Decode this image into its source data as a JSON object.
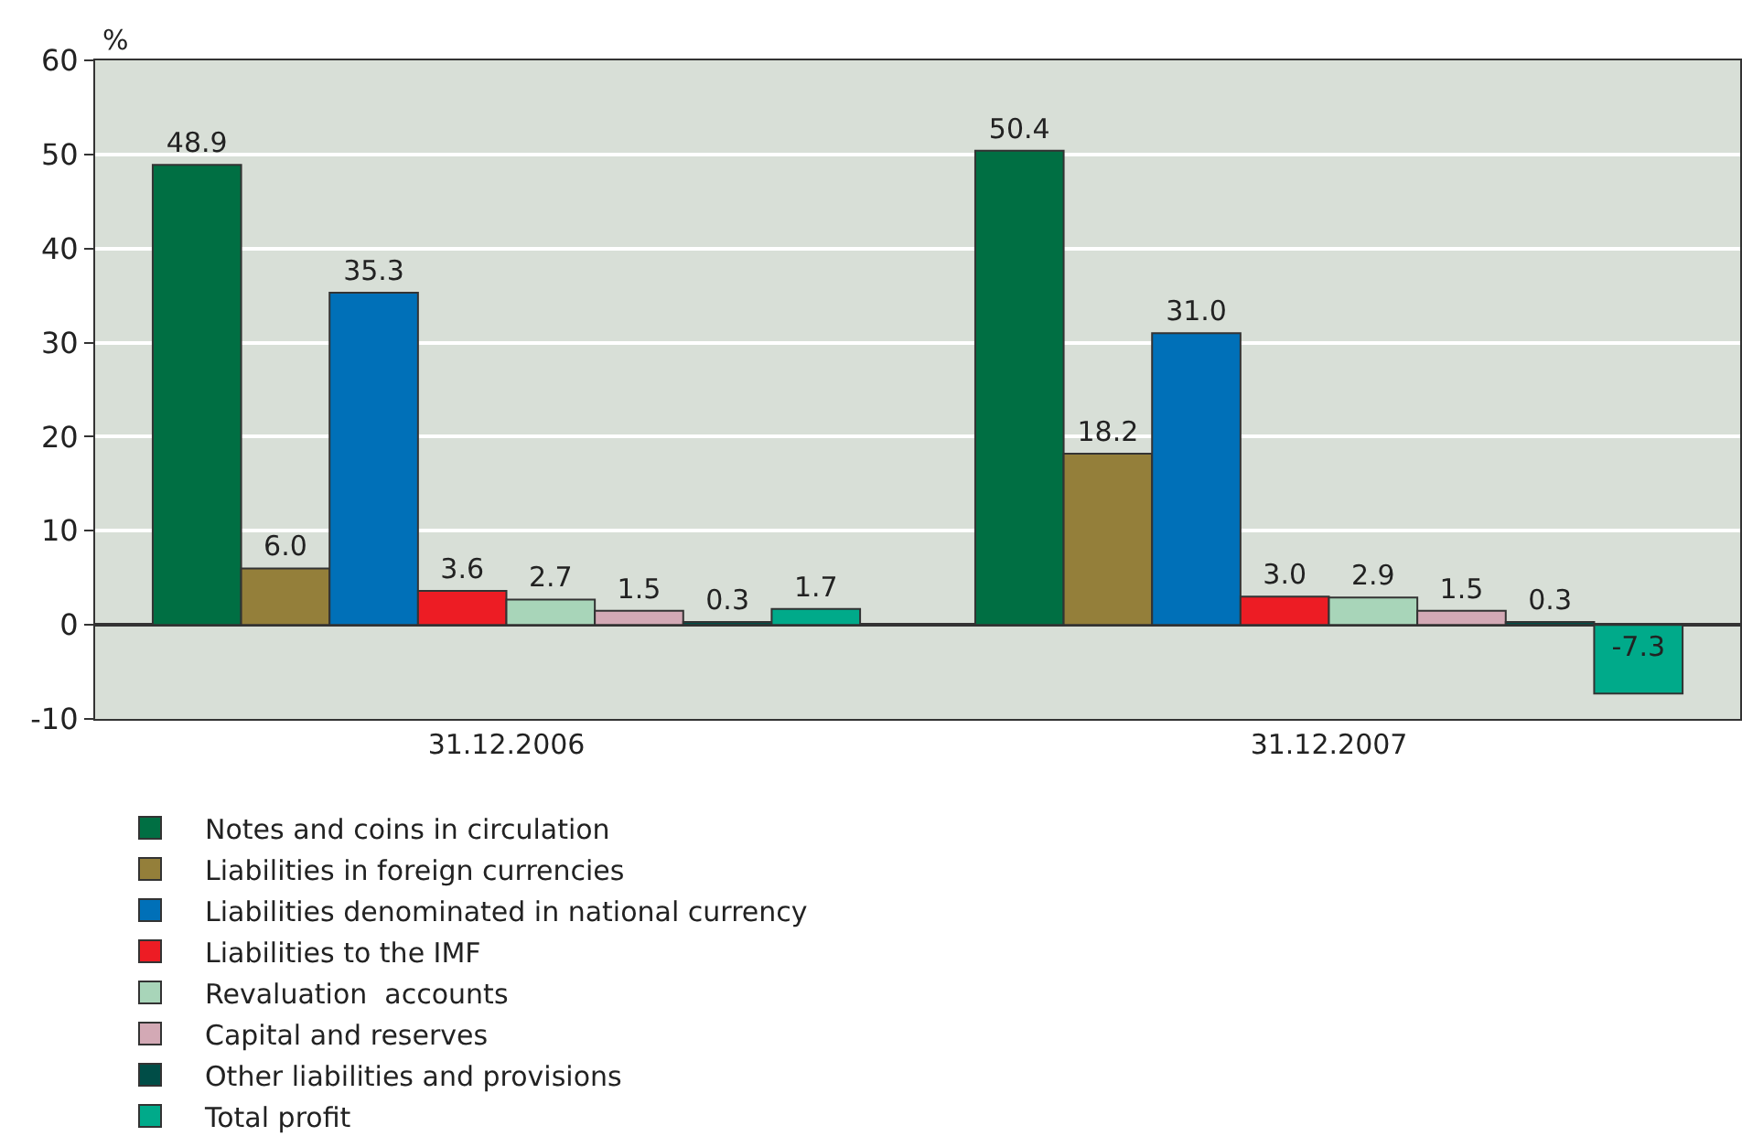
{
  "chart_data": {
    "type": "bar",
    "ylabel": "%",
    "categories": [
      "31.12.2006",
      "31.12.2007"
    ],
    "series": [
      {
        "name": "Notes and coins in circulation",
        "color": "#006f43",
        "values": [
          48.9,
          50.4
        ],
        "value_labels": [
          "48.9",
          "50.4"
        ]
      },
      {
        "name": "Liabilities in foreign currencies",
        "color": "#947f3a",
        "values": [
          6.0,
          18.2
        ],
        "value_labels": [
          "6.0",
          "18.2"
        ]
      },
      {
        "name": "Liabilities denominated in national currency",
        "color": "#0070b8",
        "values": [
          35.3,
          31.0
        ],
        "value_labels": [
          "35.3",
          "31.0"
        ]
      },
      {
        "name": "Liabilities to the IMF",
        "color": "#ed1c24",
        "values": [
          3.6,
          3.0
        ],
        "value_labels": [
          "3.6",
          "3.0"
        ]
      },
      {
        "name": "Revaluation  accounts",
        "color": "#a8d5b9",
        "values": [
          2.7,
          2.9
        ],
        "value_labels": [
          "2.7",
          "2.9"
        ]
      },
      {
        "name": "Capital and reserves",
        "color": "#d3a9b5",
        "values": [
          1.5,
          1.5
        ],
        "value_labels": [
          "1.5",
          "1.5"
        ]
      },
      {
        "name": "Other liabilities and provisions",
        "color": "#004d47",
        "values": [
          0.3,
          0.3
        ],
        "value_labels": [
          "0.3",
          "0.3"
        ]
      },
      {
        "name": "Total profit",
        "color": "#00aa8a",
        "values": [
          1.7,
          -7.3
        ],
        "value_labels": [
          "1.7",
          "-7.3"
        ]
      }
    ],
    "ylim": [
      -10,
      60
    ],
    "yticks": [
      -10,
      0,
      10,
      20,
      30,
      40,
      50,
      60
    ],
    "grid": "y",
    "legend": "bottom"
  }
}
